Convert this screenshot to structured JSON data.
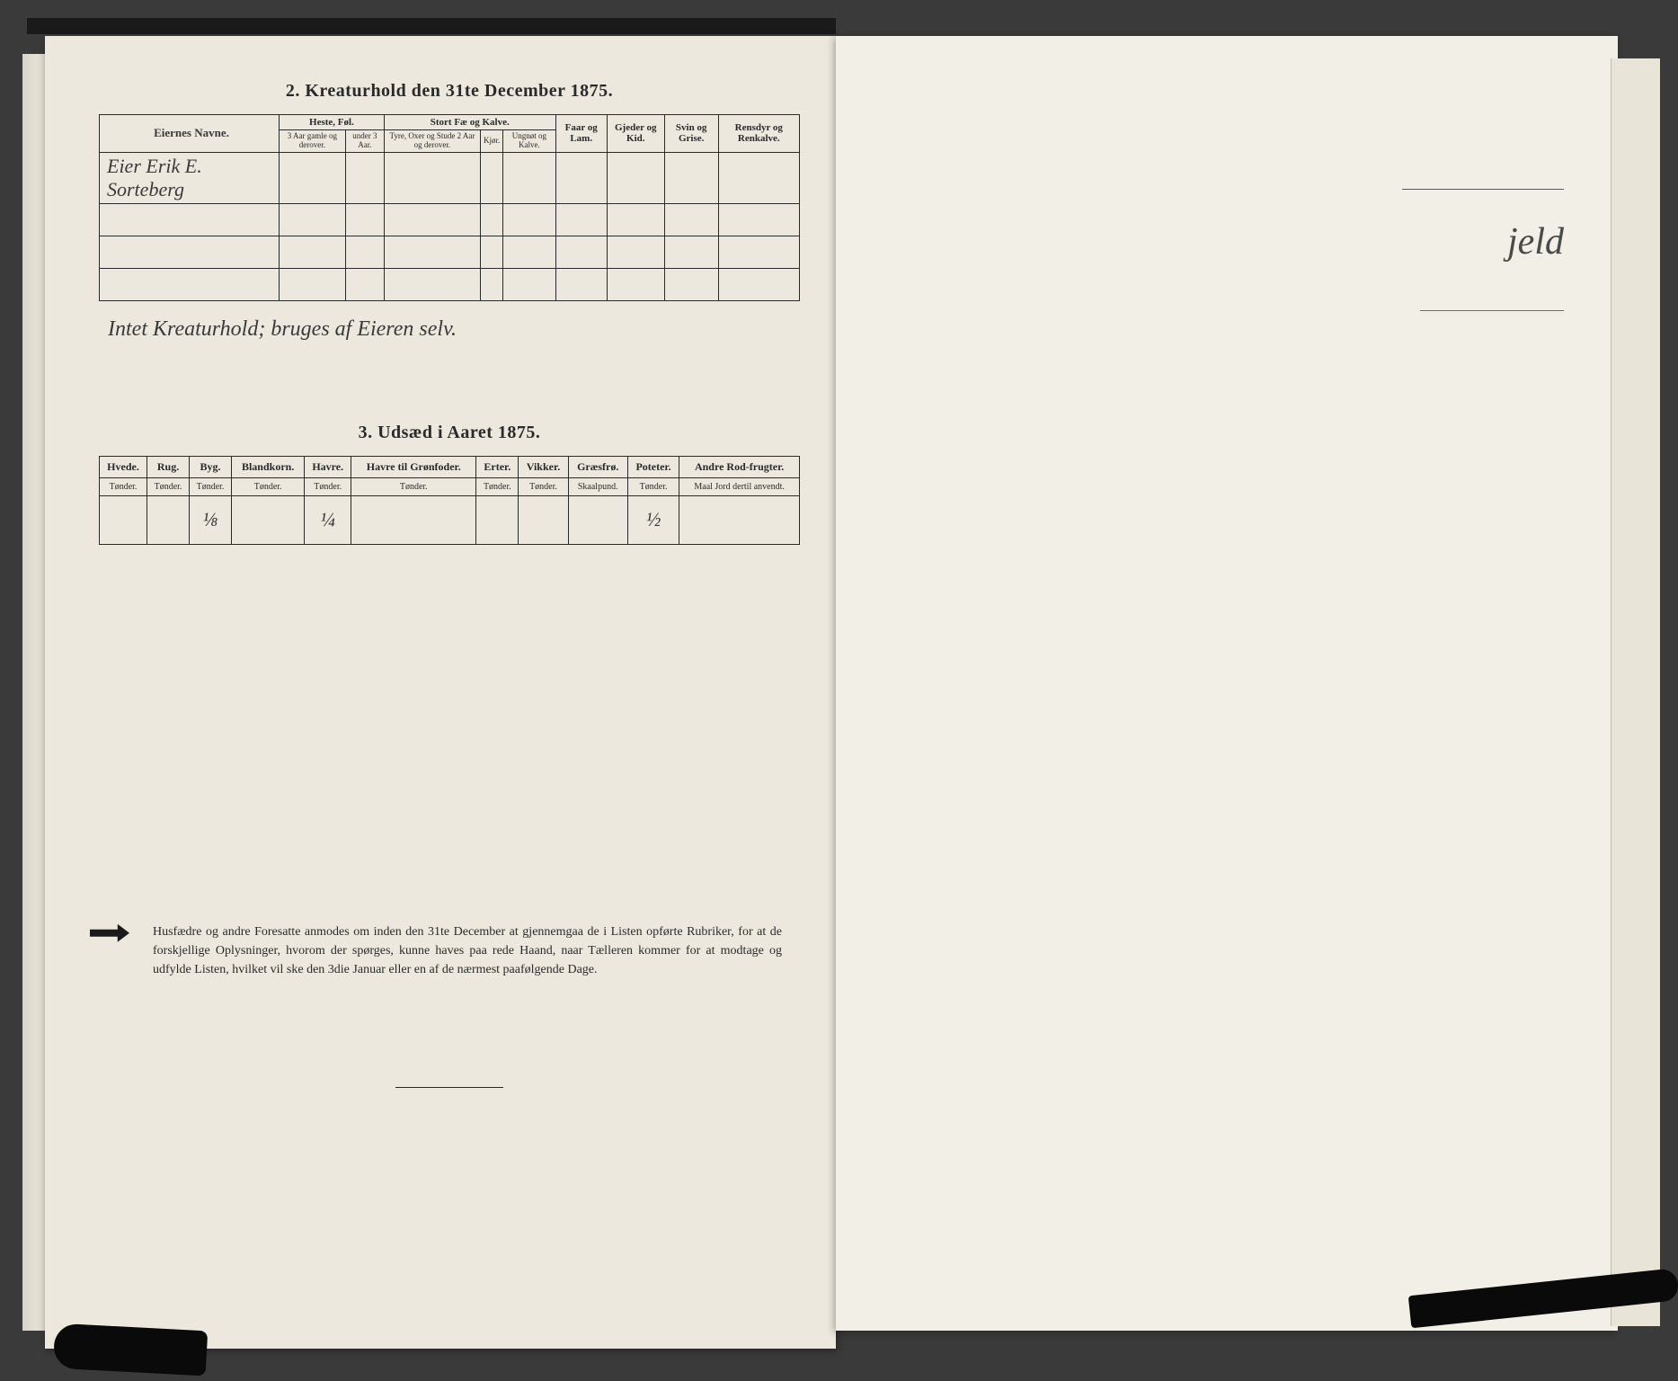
{
  "colors": {
    "page_bg": "#ece8dd",
    "right_page_bg": "#f2efe6",
    "ink": "#2a2a2a",
    "script_ink": "#3a3a3a",
    "scan_bg": "#3a3a3a"
  },
  "section2": {
    "title": "2.  Kreaturhold den 31te December 1875.",
    "col_owner": "Eiernes Navne.",
    "group_heste": "Heste, Føl.",
    "group_stortfae": "Stort Fæ og Kalve.",
    "col_faar": "Faar og Lam.",
    "col_gjeder": "Gjeder og Kid.",
    "col_svin": "Svin og Grise.",
    "col_rensdyr": "Rensdyr og Renkalve.",
    "sub_heste1": "3 Aar gamle og derover.",
    "sub_heste2": "under 3 Aar.",
    "sub_fae1": "Tyre, Oxer og Stude 2 Aar og derover.",
    "sub_fae2": "Kjør.",
    "sub_fae3": "Ungnøt og Kalve.",
    "row1_name": "Eier Erik E. Sorteberg",
    "note": "Intet Kreaturhold; bruges af Eieren selv."
  },
  "section3": {
    "title": "3.  Udsæd i Aaret 1875.",
    "cols": [
      "Hvede.",
      "Rug.",
      "Byg.",
      "Blandkorn.",
      "Havre.",
      "Havre til Grønfoder.",
      "Erter.",
      "Vikker.",
      "Græsfrø.",
      "Poteter.",
      "Andre Rod-frugter."
    ],
    "units": [
      "Tønder.",
      "Tønder.",
      "Tønder.",
      "Tønder.",
      "Tønder.",
      "Tønder.",
      "Tønder.",
      "Tønder.",
      "Skaalpund.",
      "Tønder.",
      "Maal Jord dertil anvendt."
    ],
    "values": [
      "",
      "",
      "⅛",
      "",
      "¼",
      "",
      "",
      "",
      "",
      "½",
      ""
    ]
  },
  "footer": {
    "text": "Husfædre og andre Foresatte anmodes om inden den 31te December at gjennemgaa de i Listen opførte Rubriker, for at de forskjellige Oplysninger, hvorom der spørges, kunne haves paa rede Haand, naar Tælleren kommer for at modtage og udfylde Listen, hvilket vil ske den 3die Januar eller en af de nærmest paafølgende Dage."
  },
  "right_page": {
    "script": "jeld"
  }
}
